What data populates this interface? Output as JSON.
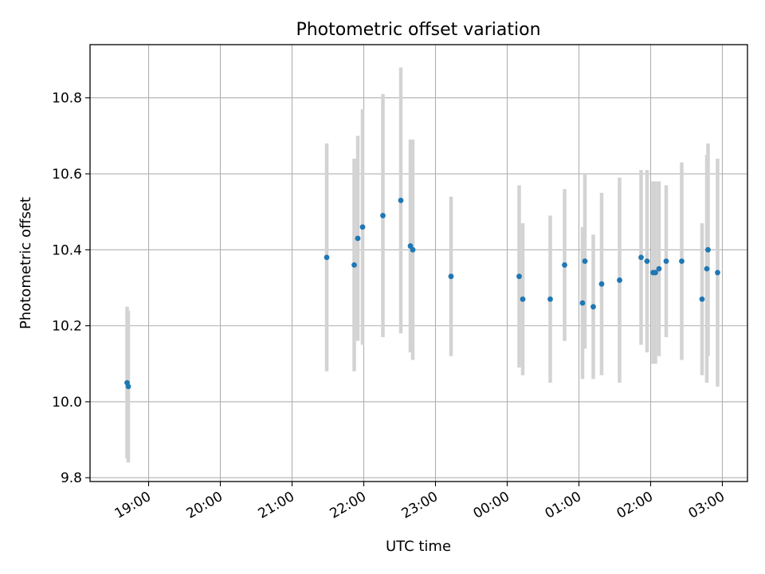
{
  "chart_data": {
    "type": "scatter",
    "title": "Photometric offset variation",
    "xlabel": "UTC time",
    "ylabel": "Photometric offset",
    "x_unit": "UTC time (hh:mm); times after midnight belong to the following day",
    "x_ticks": [
      "19:00",
      "20:00",
      "21:00",
      "22:00",
      "23:00",
      "00:00",
      "01:00",
      "02:00",
      "03:00"
    ],
    "y_ticks": [
      "9.8",
      "10.0",
      "10.2",
      "10.4",
      "10.6",
      "10.8"
    ],
    "xlim": [
      "18:11",
      "03:21"
    ],
    "ylim": [
      9.79,
      10.94
    ],
    "grid": true,
    "marker_color": "#1f77b4",
    "errorbar_color": "#d3d3d3",
    "series": [
      {
        "points": [
          {
            "t": "18:42",
            "y": 10.05,
            "err": 0.2
          },
          {
            "t": "18:43",
            "y": 10.04,
            "err": 0.2
          },
          {
            "t": "21:29",
            "y": 10.38,
            "err": 0.3
          },
          {
            "t": "21:52",
            "y": 10.36,
            "err": 0.28
          },
          {
            "t": "21:55",
            "y": 10.43,
            "err": 0.27
          },
          {
            "t": "21:59",
            "y": 10.46,
            "err": 0.31
          },
          {
            "t": "22:16",
            "y": 10.49,
            "err": 0.32
          },
          {
            "t": "22:31",
            "y": 10.53,
            "err": 0.35
          },
          {
            "t": "22:39",
            "y": 10.41,
            "err": 0.28
          },
          {
            "t": "22:41",
            "y": 10.4,
            "err": 0.29
          },
          {
            "t": "23:13",
            "y": 10.33,
            "err": 0.21
          },
          {
            "t": "00:10",
            "y": 10.33,
            "err": 0.24
          },
          {
            "t": "00:13",
            "y": 10.27,
            "err": 0.2
          },
          {
            "t": "00:36",
            "y": 10.27,
            "err": 0.22
          },
          {
            "t": "00:48",
            "y": 10.36,
            "err": 0.2
          },
          {
            "t": "01:03",
            "y": 10.26,
            "err": 0.2
          },
          {
            "t": "01:05",
            "y": 10.37,
            "err": 0.23
          },
          {
            "t": "01:12",
            "y": 10.25,
            "err": 0.19
          },
          {
            "t": "01:19",
            "y": 10.31,
            "err": 0.24
          },
          {
            "t": "01:34",
            "y": 10.32,
            "err": 0.27
          },
          {
            "t": "01:52",
            "y": 10.38,
            "err": 0.23
          },
          {
            "t": "01:57",
            "y": 10.37,
            "err": 0.24
          },
          {
            "t": "02:02",
            "y": 10.34,
            "err": 0.24
          },
          {
            "t": "02:04",
            "y": 10.34,
            "err": 0.24
          },
          {
            "t": "02:07",
            "y": 10.35,
            "err": 0.23
          },
          {
            "t": "02:13",
            "y": 10.37,
            "err": 0.2
          },
          {
            "t": "02:26",
            "y": 10.37,
            "err": 0.26
          },
          {
            "t": "02:43",
            "y": 10.27,
            "err": 0.2
          },
          {
            "t": "02:47",
            "y": 10.35,
            "err": 0.3
          },
          {
            "t": "02:48",
            "y": 10.4,
            "err": 0.28
          },
          {
            "t": "02:56",
            "y": 10.34,
            "err": 0.3
          }
        ]
      }
    ]
  }
}
